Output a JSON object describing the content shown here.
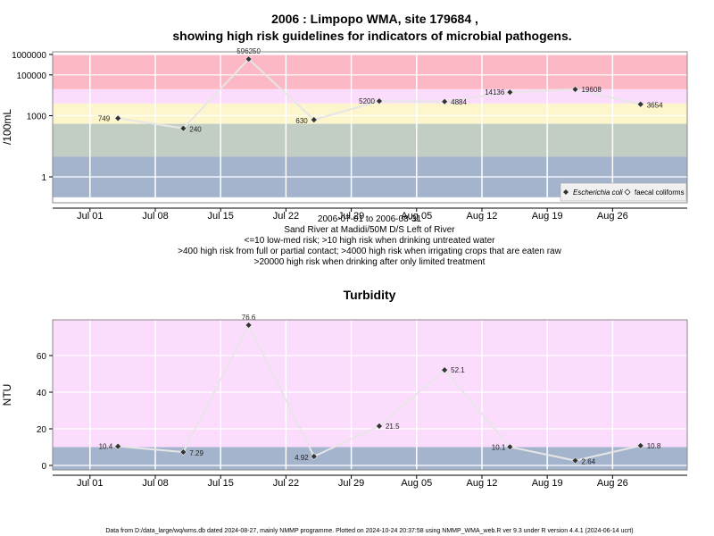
{
  "chart_data": [
    {
      "type": "line",
      "title": "2006 : Limpopo WMA, site 179684 ,",
      "subtitle": "showing high risk guidelines for indicators of microbial pathogens.",
      "ylabel": "/100mL",
      "yscale": "log",
      "ylim": [
        0.1,
        1000000
      ],
      "yticks": [
        "1",
        "1000",
        "100000",
        "1000000"
      ],
      "xlim": [
        "2006-06-27",
        "2006-09-03"
      ],
      "xticks": [
        "Jul 01",
        "Jul 08",
        "Jul 15",
        "Jul 22",
        "Jul 29",
        "Aug 05",
        "Aug 12",
        "Aug 19",
        "Aug 26"
      ],
      "caption_lines": [
        "2006-07-01 to 2006-08-31",
        "Sand River at Madidi/50M D/S Left of River",
        "<=10 low-med risk; >10 high risk when drinking untreated water",
        ">400 high risk from full or partial contact; >4000 high risk when irrigating crops that are eaten raw",
        ">20000 high risk when drinking after only limited treatment"
      ],
      "bands": [
        {
          "from": 0.1,
          "to": 10,
          "color": "#a4b4cc"
        },
        {
          "from": 10,
          "to": 400,
          "color": "#c2cec4"
        },
        {
          "from": 400,
          "to": 4000,
          "color": "#fdf6cc"
        },
        {
          "from": 4000,
          "to": 20000,
          "color": "#fcdcfc"
        },
        {
          "from": 20000,
          "to": 1000000,
          "color": "#fcb8c4"
        }
      ],
      "legend": {
        "position": "bottom-right",
        "entries": [
          "Escherichia coli",
          "faecal coliforms"
        ]
      },
      "grid": true,
      "series": [
        {
          "name": "Escherichia coli",
          "x": [
            "2006-07-04",
            "2006-07-11",
            "2006-07-18",
            "2006-07-25",
            "2006-08-01",
            "2006-08-08",
            "2006-08-15",
            "2006-08-22",
            "2006-08-29"
          ],
          "values": [
            749,
            240,
            596250,
            630,
            5200,
            4884,
            14136,
            19608,
            3654
          ],
          "labels": [
            "749",
            "240",
            "596250",
            "630",
            "5200",
            "4884",
            "14136",
            "19608",
            "3654"
          ]
        }
      ]
    },
    {
      "type": "line",
      "title": "Turbidity",
      "ylabel": "NTU",
      "ylim": [
        -3,
        80
      ],
      "yticks": [
        "0",
        "20",
        "40",
        "60"
      ],
      "xlim": [
        "2006-06-27",
        "2006-09-03"
      ],
      "xticks": [
        "Jul 01",
        "Jul 08",
        "Jul 15",
        "Jul 22",
        "Jul 29",
        "Aug 05",
        "Aug 12",
        "Aug 19",
        "Aug 26"
      ],
      "bands": [
        {
          "from": -3,
          "to": 10,
          "color": "#a4b4cc"
        },
        {
          "from": 10,
          "to": 80,
          "color": "#fcdcfc"
        }
      ],
      "grid": true,
      "series": [
        {
          "x": [
            "2006-07-04",
            "2006-07-11",
            "2006-07-18",
            "2006-07-25",
            "2006-08-01",
            "2006-08-08",
            "2006-08-15",
            "2006-08-22",
            "2006-08-29"
          ],
          "values": [
            10.4,
            7.29,
            76.6,
            4.92,
            21.5,
            52.1,
            10.1,
            2.64,
            10.8
          ],
          "labels": [
            "10.4",
            "7.29",
            "76.6",
            "4.92",
            "21.5",
            "52.1",
            "10.1",
            "2.64",
            "10.8"
          ]
        }
      ]
    }
  ],
  "footer": "Data from D:/data_large/wq/wms.db dated 2024-08-27, mainly NMMP programme. Plotted on 2024-10-24 20:37:58 using NMMP_WMA_web.R ver 9.3 under R version 4.4.1 (2024-06-14 ucrt)"
}
